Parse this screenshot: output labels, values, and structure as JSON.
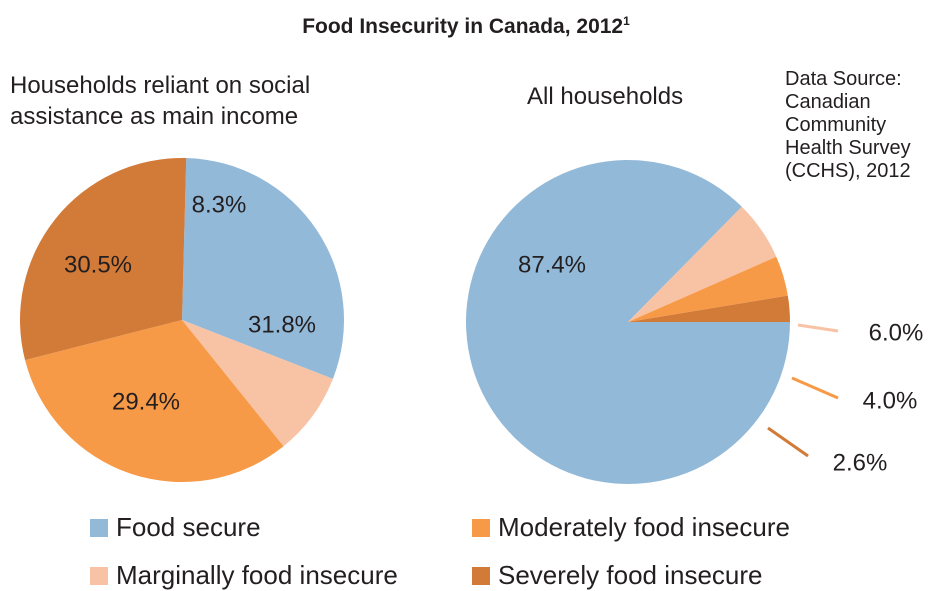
{
  "title": "Food Insecurity in Canada, 2012",
  "title_footnote": "1",
  "source": [
    "Data Source:",
    "Canadian",
    "Community",
    "Health Survey",
    "(CCHS), 2012"
  ],
  "colors": {
    "food_secure": "#93b9d8",
    "marginal": "#f8c3a4",
    "moderate": "#f79a48",
    "severe": "#d27a38"
  },
  "legend": [
    {
      "label": "Food secure",
      "color": "#93b9d8"
    },
    {
      "label": "Moderately food insecure",
      "color": "#f79a48"
    },
    {
      "label": "Marginally food insecure",
      "color": "#f8c3a4"
    },
    {
      "label": "Severely food insecure",
      "color": "#d27a38"
    }
  ],
  "chart_data": [
    {
      "type": "pie",
      "title": [
        "Households reliant on social",
        "assistance as main income"
      ],
      "categories": [
        "Food secure",
        "Marginally food insecure",
        "Moderately food insecure",
        "Severely food insecure"
      ],
      "values": [
        30.5,
        8.3,
        31.8,
        29.4
      ],
      "labels": [
        "30.5%",
        "8.3%",
        "31.8%",
        "29.4%"
      ]
    },
    {
      "type": "pie",
      "title": [
        "All households"
      ],
      "categories": [
        "Food secure",
        "Marginally food insecure",
        "Moderately food insecure",
        "Severely food insecure"
      ],
      "values": [
        87.4,
        6.0,
        4.0,
        2.6
      ],
      "labels": [
        "87.4%",
        "6.0%",
        "4.0%",
        "2.6%"
      ]
    }
  ]
}
